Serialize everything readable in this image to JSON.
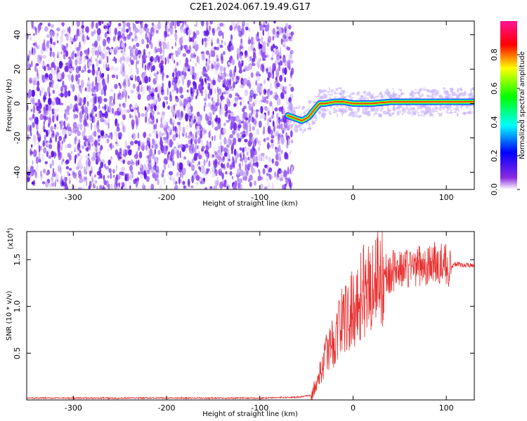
{
  "title": "C2E1.2024.067.19.49.G17",
  "chart_data": [
    {
      "type": "heatmap",
      "xlabel": "Height of straight line (km)",
      "ylabel": "Frequency (Hz)",
      "xlim": [
        -350,
        130
      ],
      "ylim": [
        -50,
        48
      ],
      "xticks": [
        -300,
        -200,
        -100,
        0,
        100
      ],
      "yticks": [
        -40,
        -20,
        0,
        20,
        40
      ],
      "noise_region_x": [
        -350,
        -65
      ],
      "ridge": {
        "x": [
          -70,
          -60,
          -55,
          -48,
          -42,
          -36,
          -30,
          -20,
          -10,
          0,
          20,
          40,
          60,
          80,
          100,
          130
        ],
        "y": [
          -7,
          -9,
          -10,
          -8,
          -4,
          0,
          0,
          1,
          1,
          0,
          0,
          1,
          1,
          1,
          1,
          1
        ]
      },
      "colorbar": {
        "label": "Normalized spectral amplitude",
        "range": [
          0,
          1
        ],
        "ticks": [
          "0.0",
          "0.2",
          "0.4",
          "0.6",
          "0.8"
        ],
        "colors": [
          "#ffffff",
          "#8a2be2",
          "#0000ff",
          "#00ffff",
          "#00ff00",
          "#ffff00",
          "#ff0000",
          "#ff1493"
        ]
      },
      "grid": false,
      "colors": {
        "noise": "#7b2cf0"
      }
    },
    {
      "type": "line",
      "xlabel": "Height of straight line (km)",
      "ylabel": "SNR (10 * v/v)",
      "yscale_label": "(x10",
      "yscale_exp": "4",
      "yscale_close": ")",
      "xlim": [
        -350,
        130
      ],
      "ylim": [
        0,
        1.8
      ],
      "xticks": [
        -300,
        -200,
        -100,
        0,
        100
      ],
      "yticks": [
        0.5,
        1.0,
        1.5
      ],
      "ytick_labels": [
        "0.5",
        "1.0",
        "1.5"
      ],
      "series": [
        {
          "color": "#e83030",
          "x": [
            -350,
            -300,
            -250,
            -200,
            -150,
            -100,
            -60,
            -45,
            -40,
            -35,
            -30,
            -25,
            -20,
            -15,
            -10,
            -5,
            0,
            5,
            10,
            15,
            20,
            25,
            30,
            35,
            40,
            45,
            50,
            55,
            60,
            65,
            70,
            75,
            80,
            85,
            90,
            95,
            100,
            105,
            110,
            115,
            120,
            125,
            130
          ],
          "y": [
            0.02,
            0.02,
            0.02,
            0.02,
            0.02,
            0.02,
            0.03,
            0.05,
            0.15,
            0.3,
            0.45,
            0.6,
            0.6,
            0.8,
            0.9,
            0.85,
            1.0,
            1.05,
            1.15,
            1.2,
            1.25,
            1.3,
            1.35,
            1.35,
            1.35,
            1.4,
            1.38,
            1.42,
            1.4,
            1.45,
            1.42,
            1.45,
            1.42,
            1.48,
            1.45,
            1.45,
            1.45,
            1.42,
            1.45,
            1.45,
            1.44,
            1.44,
            1.44
          ]
        }
      ],
      "grid": false
    }
  ]
}
